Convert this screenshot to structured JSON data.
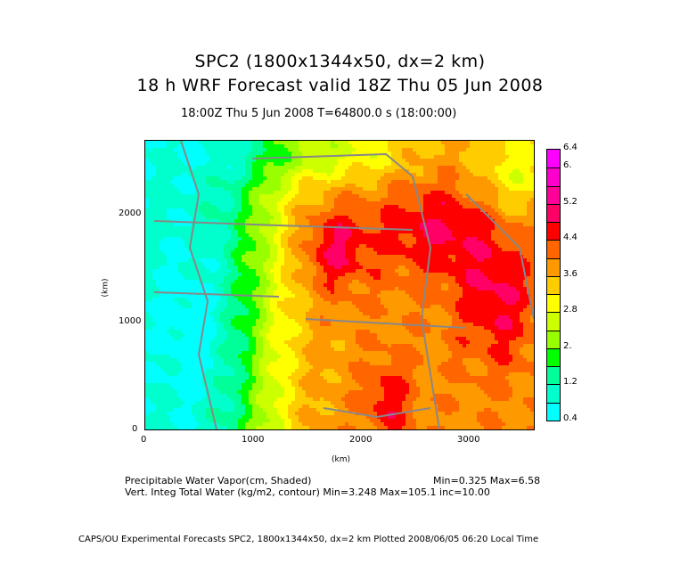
{
  "title_line1": "SPC2 (1800x1344x50, dx=2 km)",
  "title_line2": "18 h WRF Forecast valid 18Z Thu 05 Jun 2008",
  "time_line": "18:00Z Thu  5 Jun 2008     T=64800.0 s (18:00:00)",
  "x_axis": {
    "label": "(km)",
    "ticks": [
      "0",
      "1000",
      "2000",
      "3000"
    ],
    "range": [
      0,
      3620
    ]
  },
  "y_axis": {
    "label": "(km)",
    "ticks": [
      "0",
      "1000",
      "2000"
    ],
    "range": [
      0,
      2690
    ]
  },
  "colorbar": {
    "labels": [
      "6.4",
      "6.",
      "5.2",
      "4.4",
      "3.6",
      "2.8",
      "2.",
      "1.2",
      "0.4"
    ],
    "levels": [
      0.4,
      0.8,
      1.2,
      1.6,
      2.0,
      2.4,
      2.8,
      3.2,
      3.6,
      4.0,
      4.4,
      4.8,
      5.2,
      5.6,
      6.0,
      6.4
    ],
    "colors": [
      "#00ffff",
      "#00ffcc",
      "#00ff99",
      "#00ff00",
      "#99ff00",
      "#ccff00",
      "#ffff00",
      "#ffcc00",
      "#ff9900",
      "#ff6600",
      "#ff0000",
      "#ff0066",
      "#ff0099",
      "#ff00cc",
      "#ff00ff"
    ]
  },
  "legend": {
    "shaded_label": "Precipitable Water Vapor(cm, Shaded)",
    "shaded_stats": "Min=0.325  Max=6.58",
    "contour_label": "Vert. Integ Total Water (kg/m2, contour) Min=3.248  Max=105.1  inc=10.00"
  },
  "footer": "CAPS/OU Experimental Forecasts   SPC2, 1800x1344x50, dx=2 km   Plotted 2008/06/05 06:20 Local Time"
}
